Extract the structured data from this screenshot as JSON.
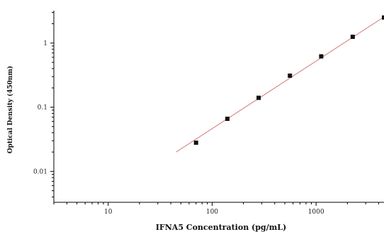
{
  "chart_data": {
    "type": "scatter",
    "xscale": "log",
    "yscale": "log",
    "xlabel": "IFNA5 Concentration (pg/mL)",
    "ylabel": "Optical Density (450nm)",
    "xlim": [
      3,
      4500
    ],
    "ylim": [
      0.0033,
      3.2
    ],
    "x_ticks": [
      10,
      100,
      1000
    ],
    "x_tick_labels": [
      "10",
      "100",
      "1000"
    ],
    "y_ticks": [
      0.01,
      0.1,
      1
    ],
    "y_tick_labels": [
      "0.01",
      "0.1",
      "1"
    ],
    "grid": false,
    "legend": "none",
    "series": [
      {
        "x": [
          70,
          140,
          280,
          560,
          1120,
          2250,
          4500
        ],
        "y": [
          0.028,
          0.066,
          0.14,
          0.31,
          0.62,
          1.25,
          2.5
        ]
      }
    ],
    "fit_line": {
      "x": [
        45,
        4500
      ],
      "y": [
        0.02,
        2.55
      ]
    },
    "colors": {
      "points": "#111111",
      "fit_line": "#d98b8b",
      "axis": "#000000"
    }
  }
}
